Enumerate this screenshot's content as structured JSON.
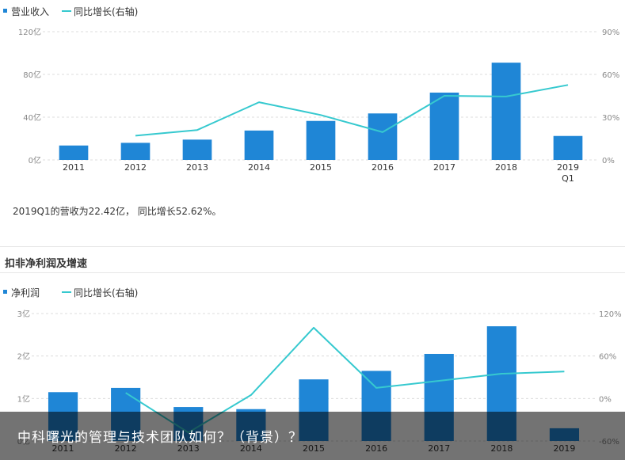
{
  "charts": {
    "revenue": {
      "legend_bar": "营业收入",
      "legend_line": "同比增长(右轴)",
      "caption": "2019Q1的营收为22.42亿， 同比增长52.62%。"
    },
    "profit": {
      "section_title": "扣非净利润及增速",
      "legend_bar": "净利润",
      "legend_line": "同比增长(右轴)"
    }
  },
  "overlay": {
    "title": "中科曙光的管理与技术团队如何？（背景）？"
  },
  "colors": {
    "bar": "#1f86d6",
    "line": "#36c9cf",
    "grid": "#dcdcdc",
    "overlay": "rgba(0,0,0,0.55)"
  },
  "chart_data": [
    {
      "type": "bar",
      "title": "",
      "categories": [
        "2011",
        "2012",
        "2013",
        "2014",
        "2015",
        "2016",
        "2017",
        "2018",
        "2019 Q1"
      ],
      "series": [
        {
          "name": "营业收入",
          "type": "bar",
          "axis": "left",
          "values": [
            13.5,
            16,
            19,
            27.5,
            36.5,
            43.5,
            63,
            91,
            22.42
          ]
        },
        {
          "name": "同比增长(右轴)",
          "type": "line",
          "axis": "right",
          "values": [
            null,
            17,
            21,
            40.5,
            31.5,
            19.5,
            45,
            44.5,
            52.62
          ]
        }
      ],
      "y_left_ticks": [
        "0亿",
        "40亿",
        "80亿",
        "120亿"
      ],
      "y_left_range": [
        0,
        120
      ],
      "y_right_ticks": [
        "0%",
        "30%",
        "60%",
        "90%"
      ],
      "y_right_range": [
        0,
        90
      ],
      "grid": true,
      "legend_position": "top-left"
    },
    {
      "type": "bar",
      "title": "扣非净利润及增速",
      "categories": [
        "2011",
        "2012",
        "2013",
        "2014",
        "2015",
        "2016",
        "2017",
        "2018",
        "2019"
      ],
      "series": [
        {
          "name": "净利润",
          "type": "bar",
          "axis": "left",
          "values": [
            1.15,
            1.25,
            0.8,
            0.75,
            1.45,
            1.65,
            2.05,
            2.7,
            0.3
          ]
        },
        {
          "name": "同比增长(右轴)",
          "type": "line",
          "axis": "right",
          "values": [
            null,
            8,
            -48,
            5,
            100,
            15,
            25,
            35,
            38
          ]
        }
      ],
      "y_left_ticks": [
        "0亿",
        "1亿",
        "2亿",
        "3亿"
      ],
      "y_left_range": [
        0,
        3
      ],
      "y_right_ticks": [
        "-60%",
        "0%",
        "60%",
        "120%"
      ],
      "y_right_range": [
        -60,
        120
      ],
      "grid": true,
      "legend_position": "top-left"
    }
  ]
}
